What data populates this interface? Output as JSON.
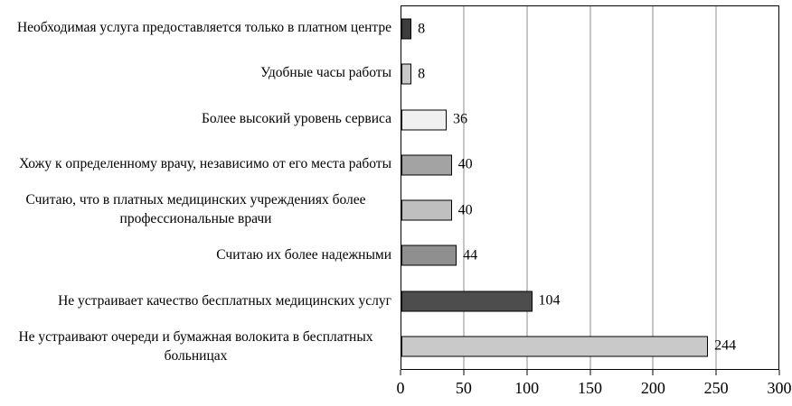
{
  "chart_data": {
    "type": "bar",
    "orientation": "horizontal",
    "title": "",
    "xlabel": "",
    "ylabel": "",
    "xlim": [
      0,
      300
    ],
    "x_ticks": [
      0,
      50,
      100,
      150,
      200,
      250,
      300
    ],
    "grid": "vertical",
    "legend": "none",
    "categories": [
      "Необходимая услуга предоставляется только в платном центре",
      "Удобные часы работы",
      "Более высокий уровень сервиса",
      "Хожу к определенному врачу, независимо от его места работы",
      "Считаю, что в платных медицинских учреждениях более профессиональные врачи",
      "Считаю их более надежными",
      "Не устраивает качество бесплатных медицинских услуг",
      "Не устраивают очереди и бумажная волокита в бесплатных больницах"
    ],
    "values": [
      8,
      8,
      36,
      40,
      40,
      44,
      104,
      244
    ],
    "value_labels": [
      "8",
      "8",
      "36",
      "40",
      "40",
      "44",
      "104",
      "244"
    ],
    "bar_colors": [
      "#3d3d3d",
      "#c9c9c9",
      "#f0f0f0",
      "#a3a3a3",
      "#bfbfbf",
      "#8f8f8f",
      "#4d4d4d",
      "#c9c9c9"
    ],
    "colors": {
      "bar_border": "#000000",
      "gridline": "#8c8c8c",
      "axis": "#000000",
      "background": "#ffffff"
    }
  }
}
